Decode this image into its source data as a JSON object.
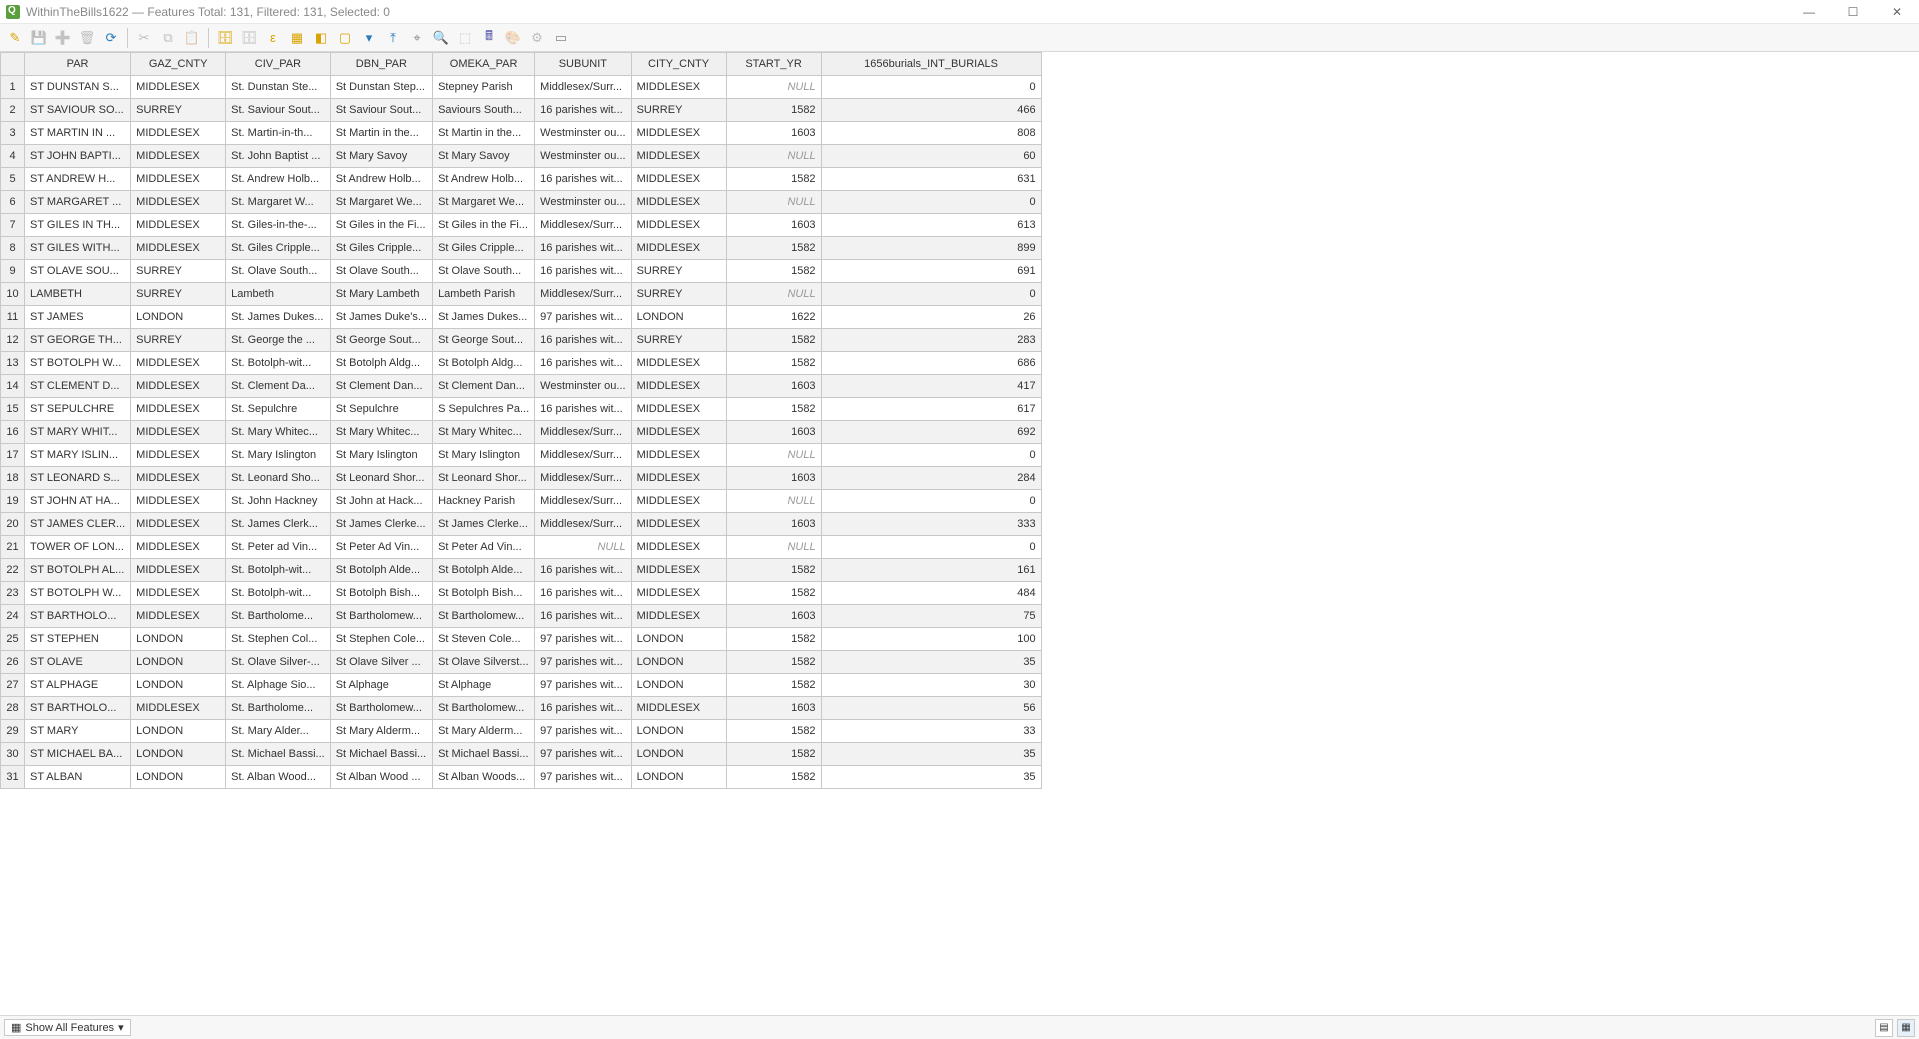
{
  "window": {
    "title": "WithinTheBills1622 — Features Total: 131, Filtered: 131, Selected: 0"
  },
  "toolbar": {
    "icons": [
      {
        "name": "pencil-icon",
        "glyph": "✎",
        "color": "#d9a400"
      },
      {
        "name": "save-icon",
        "glyph": "💾",
        "disabled": true
      },
      {
        "name": "add-feature-icon",
        "glyph": "➕",
        "disabled": true
      },
      {
        "name": "delete-feature-icon",
        "glyph": "🗑",
        "disabled": true
      },
      {
        "name": "reload-icon",
        "glyph": "⟳",
        "color": "#2b7bb9"
      },
      {
        "sep": true
      },
      {
        "name": "cut-icon",
        "glyph": "✂",
        "disabled": true
      },
      {
        "name": "copy-icon",
        "glyph": "⧉",
        "disabled": true
      },
      {
        "name": "paste-icon",
        "glyph": "📋",
        "disabled": true
      },
      {
        "sep": true
      },
      {
        "name": "new-field-icon",
        "glyph": "🗄",
        "color": "#d9a400"
      },
      {
        "name": "delete-field-icon",
        "glyph": "🗄",
        "disabled": true
      },
      {
        "name": "select-expr-icon",
        "glyph": "ε",
        "color": "#d9a400"
      },
      {
        "name": "select-all-icon",
        "glyph": "▦",
        "color": "#d9a400"
      },
      {
        "name": "invert-select-icon",
        "glyph": "◧",
        "color": "#d9a400"
      },
      {
        "name": "deselect-icon",
        "glyph": "▢",
        "color": "#d9a400"
      },
      {
        "name": "filter-icon",
        "glyph": "▾",
        "color": "#2b7bb9"
      },
      {
        "name": "move-top-icon",
        "glyph": "⤒",
        "color": "#2b7bb9"
      },
      {
        "name": "pan-to-icon",
        "glyph": "⌖",
        "color": "#888"
      },
      {
        "name": "zoom-to-icon",
        "glyph": "🔍",
        "color": "#888"
      },
      {
        "name": "highlight-icon",
        "glyph": "⬚",
        "disabled": true
      },
      {
        "name": "field-calc-icon",
        "glyph": "🖩",
        "color": "#5555aa"
      },
      {
        "name": "cond-format-icon",
        "glyph": "🎨",
        "disabled": true
      },
      {
        "name": "actions-icon",
        "glyph": "⚙",
        "disabled": true
      },
      {
        "name": "dock-icon",
        "glyph": "▭",
        "color": "#888"
      }
    ]
  },
  "columns": [
    {
      "key": "PAR",
      "label": "PAR",
      "cls": "col-par"
    },
    {
      "key": "GAZ_CNTY",
      "label": "GAZ_CNTY",
      "cls": "col-gaz"
    },
    {
      "key": "CIV_PAR",
      "label": "CIV_PAR",
      "cls": "col-civ"
    },
    {
      "key": "DBN_PAR",
      "label": "DBN_PAR",
      "cls": "col-dbn"
    },
    {
      "key": "OMEKA_PAR",
      "label": "OMEKA_PAR",
      "cls": "col-ome"
    },
    {
      "key": "SUBUNIT",
      "label": "SUBUNIT",
      "cls": "col-sub"
    },
    {
      "key": "CITY_CNTY",
      "label": "CITY_CNTY",
      "cls": "col-city"
    },
    {
      "key": "START_YR",
      "label": "START_YR",
      "cls": "col-yr",
      "num": true
    },
    {
      "key": "BURIALS",
      "label": "1656burials_INT_BURIALS",
      "cls": "col-bur",
      "num": true
    }
  ],
  "rows": [
    {
      "PAR": "ST DUNSTAN S...",
      "GAZ_CNTY": "MIDDLESEX",
      "CIV_PAR": "St. Dunstan Ste...",
      "DBN_PAR": "St Dunstan Step...",
      "OMEKA_PAR": "Stepney Parish",
      "SUBUNIT": "Middlesex/Surr...",
      "CITY_CNTY": "MIDDLESEX",
      "START_YR": "NULL",
      "BURIALS": "0"
    },
    {
      "PAR": "ST SAVIOUR SO...",
      "GAZ_CNTY": "SURREY",
      "CIV_PAR": "St. Saviour Sout...",
      "DBN_PAR": "St Saviour Sout...",
      "OMEKA_PAR": "Saviours South...",
      "SUBUNIT": "16 parishes wit...",
      "CITY_CNTY": "SURREY",
      "START_YR": "1582",
      "BURIALS": "466"
    },
    {
      "PAR": "ST MARTIN IN ...",
      "GAZ_CNTY": "MIDDLESEX",
      "CIV_PAR": "St. Martin-in-th...",
      "DBN_PAR": "St Martin in the...",
      "OMEKA_PAR": "St Martin in the...",
      "SUBUNIT": "Westminster ou...",
      "CITY_CNTY": "MIDDLESEX",
      "START_YR": "1603",
      "BURIALS": "808"
    },
    {
      "PAR": "ST JOHN BAPTI...",
      "GAZ_CNTY": "MIDDLESEX",
      "CIV_PAR": "St. John Baptist ...",
      "DBN_PAR": "St Mary Savoy",
      "OMEKA_PAR": "St Mary Savoy",
      "SUBUNIT": "Westminster ou...",
      "CITY_CNTY": "MIDDLESEX",
      "START_YR": "NULL",
      "BURIALS": "60"
    },
    {
      "PAR": "ST ANDREW H...",
      "GAZ_CNTY": "MIDDLESEX",
      "CIV_PAR": "St. Andrew Holb...",
      "DBN_PAR": "St Andrew Holb...",
      "OMEKA_PAR": "St Andrew Holb...",
      "SUBUNIT": "16 parishes wit...",
      "CITY_CNTY": "MIDDLESEX",
      "START_YR": "1582",
      "BURIALS": "631"
    },
    {
      "PAR": "ST MARGARET ...",
      "GAZ_CNTY": "MIDDLESEX",
      "CIV_PAR": "St. Margaret W...",
      "DBN_PAR": "St Margaret We...",
      "OMEKA_PAR": "St Margaret We...",
      "SUBUNIT": "Westminster ou...",
      "CITY_CNTY": "MIDDLESEX",
      "START_YR": "NULL",
      "BURIALS": "0"
    },
    {
      "PAR": "ST GILES IN TH...",
      "GAZ_CNTY": "MIDDLESEX",
      "CIV_PAR": "St. Giles-in-the-...",
      "DBN_PAR": "St Giles in the Fi...",
      "OMEKA_PAR": "St Giles in the Fi...",
      "SUBUNIT": "Middlesex/Surr...",
      "CITY_CNTY": "MIDDLESEX",
      "START_YR": "1603",
      "BURIALS": "613"
    },
    {
      "PAR": "ST GILES WITH...",
      "GAZ_CNTY": "MIDDLESEX",
      "CIV_PAR": "St. Giles Cripple...",
      "DBN_PAR": "St Giles Cripple...",
      "OMEKA_PAR": "St Giles Cripple...",
      "SUBUNIT": "16 parishes wit...",
      "CITY_CNTY": "MIDDLESEX",
      "START_YR": "1582",
      "BURIALS": "899"
    },
    {
      "PAR": "ST OLAVE SOU...",
      "GAZ_CNTY": "SURREY",
      "CIV_PAR": "St. Olave South...",
      "DBN_PAR": "St Olave South...",
      "OMEKA_PAR": "St Olave South...",
      "SUBUNIT": "16 parishes wit...",
      "CITY_CNTY": "SURREY",
      "START_YR": "1582",
      "BURIALS": "691"
    },
    {
      "PAR": "LAMBETH",
      "GAZ_CNTY": "SURREY",
      "CIV_PAR": "Lambeth",
      "DBN_PAR": "St Mary Lambeth",
      "OMEKA_PAR": "Lambeth Parish",
      "SUBUNIT": "Middlesex/Surr...",
      "CITY_CNTY": "SURREY",
      "START_YR": "NULL",
      "BURIALS": "0"
    },
    {
      "PAR": "ST JAMES",
      "GAZ_CNTY": "LONDON",
      "CIV_PAR": "St. James Dukes...",
      "DBN_PAR": "St James Duke's...",
      "OMEKA_PAR": "St James Dukes...",
      "SUBUNIT": "97 parishes wit...",
      "CITY_CNTY": "LONDON",
      "START_YR": "1622",
      "BURIALS": "26"
    },
    {
      "PAR": "ST GEORGE TH...",
      "GAZ_CNTY": "SURREY",
      "CIV_PAR": "St. George the ...",
      "DBN_PAR": "St George Sout...",
      "OMEKA_PAR": "St George Sout...",
      "SUBUNIT": "16 parishes wit...",
      "CITY_CNTY": "SURREY",
      "START_YR": "1582",
      "BURIALS": "283"
    },
    {
      "PAR": "ST BOTOLPH W...",
      "GAZ_CNTY": "MIDDLESEX",
      "CIV_PAR": "St. Botolph-wit...",
      "DBN_PAR": "St Botolph Aldg...",
      "OMEKA_PAR": "St Botolph Aldg...",
      "SUBUNIT": "16 parishes wit...",
      "CITY_CNTY": "MIDDLESEX",
      "START_YR": "1582",
      "BURIALS": "686"
    },
    {
      "PAR": "ST CLEMENT D...",
      "GAZ_CNTY": "MIDDLESEX",
      "CIV_PAR": "St. Clement Da...",
      "DBN_PAR": "St Clement Dan...",
      "OMEKA_PAR": "St Clement Dan...",
      "SUBUNIT": "Westminster ou...",
      "CITY_CNTY": "MIDDLESEX",
      "START_YR": "1603",
      "BURIALS": "417"
    },
    {
      "PAR": "ST SEPULCHRE",
      "GAZ_CNTY": "MIDDLESEX",
      "CIV_PAR": "St. Sepulchre",
      "DBN_PAR": "St Sepulchre",
      "OMEKA_PAR": "S Sepulchres Pa...",
      "SUBUNIT": "16 parishes wit...",
      "CITY_CNTY": "MIDDLESEX",
      "START_YR": "1582",
      "BURIALS": "617"
    },
    {
      "PAR": "ST MARY WHIT...",
      "GAZ_CNTY": "MIDDLESEX",
      "CIV_PAR": "St. Mary Whitec...",
      "DBN_PAR": "St Mary Whitec...",
      "OMEKA_PAR": "St Mary Whitec...",
      "SUBUNIT": "Middlesex/Surr...",
      "CITY_CNTY": "MIDDLESEX",
      "START_YR": "1603",
      "BURIALS": "692"
    },
    {
      "PAR": "ST MARY ISLIN...",
      "GAZ_CNTY": "MIDDLESEX",
      "CIV_PAR": "St. Mary Islington",
      "DBN_PAR": "St Mary Islington",
      "OMEKA_PAR": "St Mary Islington",
      "SUBUNIT": "Middlesex/Surr...",
      "CITY_CNTY": "MIDDLESEX",
      "START_YR": "NULL",
      "BURIALS": "0"
    },
    {
      "PAR": "ST LEONARD S...",
      "GAZ_CNTY": "MIDDLESEX",
      "CIV_PAR": "St. Leonard Sho...",
      "DBN_PAR": "St Leonard Shor...",
      "OMEKA_PAR": "St Leonard Shor...",
      "SUBUNIT": "Middlesex/Surr...",
      "CITY_CNTY": "MIDDLESEX",
      "START_YR": "1603",
      "BURIALS": "284"
    },
    {
      "PAR": "ST JOHN AT HA...",
      "GAZ_CNTY": "MIDDLESEX",
      "CIV_PAR": "St. John Hackney",
      "DBN_PAR": "St John at Hack...",
      "OMEKA_PAR": "Hackney Parish",
      "SUBUNIT": "Middlesex/Surr...",
      "CITY_CNTY": "MIDDLESEX",
      "START_YR": "NULL",
      "BURIALS": "0"
    },
    {
      "PAR": "ST JAMES CLER...",
      "GAZ_CNTY": "MIDDLESEX",
      "CIV_PAR": "St. James Clerk...",
      "DBN_PAR": "St James Clerke...",
      "OMEKA_PAR": "St James Clerke...",
      "SUBUNIT": "Middlesex/Surr...",
      "CITY_CNTY": "MIDDLESEX",
      "START_YR": "1603",
      "BURIALS": "333"
    },
    {
      "PAR": "TOWER OF LON...",
      "GAZ_CNTY": "MIDDLESEX",
      "CIV_PAR": "St. Peter ad Vin...",
      "DBN_PAR": "St Peter Ad Vin...",
      "OMEKA_PAR": "St Peter Ad Vin...",
      "SUBUNIT": "NULL",
      "CITY_CNTY": "MIDDLESEX",
      "START_YR": "NULL",
      "BURIALS": "0"
    },
    {
      "PAR": "ST BOTOLPH AL...",
      "GAZ_CNTY": "MIDDLESEX",
      "CIV_PAR": "St. Botolph-wit...",
      "DBN_PAR": "St Botolph Alde...",
      "OMEKA_PAR": "St Botolph Alde...",
      "SUBUNIT": "16 parishes wit...",
      "CITY_CNTY": "MIDDLESEX",
      "START_YR": "1582",
      "BURIALS": "161"
    },
    {
      "PAR": "ST BOTOLPH W...",
      "GAZ_CNTY": "MIDDLESEX",
      "CIV_PAR": "St. Botolph-wit...",
      "DBN_PAR": "St Botolph Bish...",
      "OMEKA_PAR": "St Botolph Bish...",
      "SUBUNIT": "16 parishes wit...",
      "CITY_CNTY": "MIDDLESEX",
      "START_YR": "1582",
      "BURIALS": "484"
    },
    {
      "PAR": "ST BARTHOLO...",
      "GAZ_CNTY": "MIDDLESEX",
      "CIV_PAR": "St. Bartholome...",
      "DBN_PAR": "St Bartholomew...",
      "OMEKA_PAR": "St Bartholomew...",
      "SUBUNIT": "16 parishes wit...",
      "CITY_CNTY": "MIDDLESEX",
      "START_YR": "1603",
      "BURIALS": "75"
    },
    {
      "PAR": "ST STEPHEN",
      "GAZ_CNTY": "LONDON",
      "CIV_PAR": "St. Stephen Col...",
      "DBN_PAR": "St Stephen Cole...",
      "OMEKA_PAR": "St Steven Cole...",
      "SUBUNIT": "97 parishes wit...",
      "CITY_CNTY": "LONDON",
      "START_YR": "1582",
      "BURIALS": "100"
    },
    {
      "PAR": "ST OLAVE",
      "GAZ_CNTY": "LONDON",
      "CIV_PAR": "St. Olave Silver-...",
      "DBN_PAR": "St Olave Silver ...",
      "OMEKA_PAR": "St Olave Silverst...",
      "SUBUNIT": "97 parishes wit...",
      "CITY_CNTY": "LONDON",
      "START_YR": "1582",
      "BURIALS": "35"
    },
    {
      "PAR": "ST ALPHAGE",
      "GAZ_CNTY": "LONDON",
      "CIV_PAR": "St. Alphage Sio...",
      "DBN_PAR": "St Alphage",
      "OMEKA_PAR": "St Alphage",
      "SUBUNIT": "97 parishes wit...",
      "CITY_CNTY": "LONDON",
      "START_YR": "1582",
      "BURIALS": "30"
    },
    {
      "PAR": "ST BARTHOLO...",
      "GAZ_CNTY": "MIDDLESEX",
      "CIV_PAR": "St. Bartholome...",
      "DBN_PAR": "St Bartholomew...",
      "OMEKA_PAR": "St Bartholomew...",
      "SUBUNIT": "16 parishes wit...",
      "CITY_CNTY": "MIDDLESEX",
      "START_YR": "1603",
      "BURIALS": "56"
    },
    {
      "PAR": "ST MARY",
      "GAZ_CNTY": "LONDON",
      "CIV_PAR": "St. Mary Alder...",
      "DBN_PAR": "St Mary Alderm...",
      "OMEKA_PAR": "St Mary Alderm...",
      "SUBUNIT": "97 parishes wit...",
      "CITY_CNTY": "LONDON",
      "START_YR": "1582",
      "BURIALS": "33"
    },
    {
      "PAR": "ST MICHAEL BA...",
      "GAZ_CNTY": "LONDON",
      "CIV_PAR": "St. Michael Bassi...",
      "DBN_PAR": "St Michael Bassi...",
      "OMEKA_PAR": "St Michael Bassi...",
      "SUBUNIT": "97 parishes wit...",
      "CITY_CNTY": "LONDON",
      "START_YR": "1582",
      "BURIALS": "35"
    },
    {
      "PAR": "ST ALBAN",
      "GAZ_CNTY": "LONDON",
      "CIV_PAR": "St. Alban Wood...",
      "DBN_PAR": "St Alban Wood ...",
      "OMEKA_PAR": "St Alban Woods...",
      "SUBUNIT": "97 parishes wit...",
      "CITY_CNTY": "LONDON",
      "START_YR": "1582",
      "BURIALS": "35"
    }
  ],
  "statusbar": {
    "show_all": "Show All Features"
  }
}
